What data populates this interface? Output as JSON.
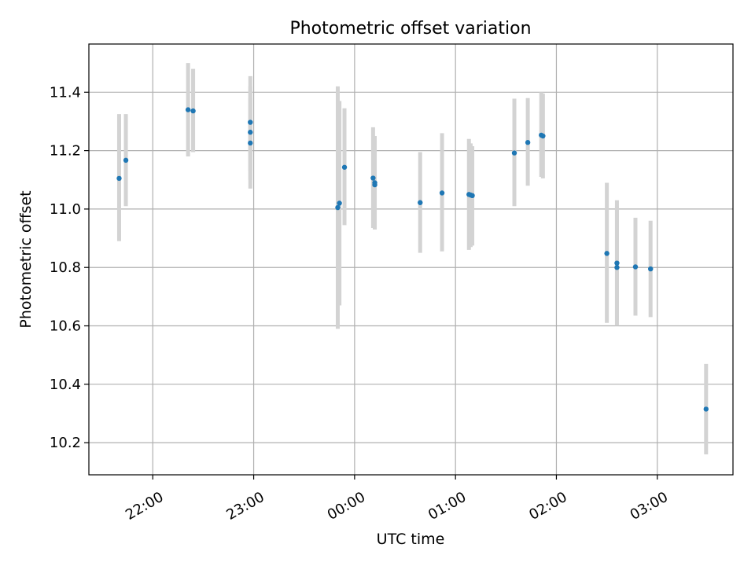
{
  "chart_data": {
    "type": "scatter",
    "title": "Photometric offset variation",
    "xlabel": "UTC time",
    "ylabel": "Photometric offset",
    "x_tick_labels": [
      "22:00",
      "23:00",
      "00:00",
      "01:00",
      "02:00",
      "03:00"
    ],
    "y_tick_labels": [
      "10.2",
      "10.4",
      "10.6",
      "10.8",
      "11.0",
      "11.2",
      "11.4"
    ],
    "y_ticks": [
      10.2,
      10.4,
      10.6,
      10.8,
      11.0,
      11.2,
      11.4
    ],
    "x_ticks": [
      "22:00",
      "23:00",
      "00:00",
      "01:00",
      "02:00",
      "03:00"
    ],
    "xlim": [
      "21:22",
      "03:45"
    ],
    "ylim": [
      10.09,
      11.565
    ],
    "grid": true,
    "colors": {
      "point": "#1f77b4",
      "errorbar": "#d3d3d3",
      "grid": "#b0b0b0"
    },
    "points": [
      {
        "x": "21:40",
        "y": 11.105,
        "low": 10.89,
        "high": 11.325
      },
      {
        "x": "21:44",
        "y": 11.167,
        "low": 11.01,
        "high": 11.325
      },
      {
        "x": "22:21",
        "y": 11.34,
        "low": 11.18,
        "high": 11.5
      },
      {
        "x": "22:24",
        "y": 11.336,
        "low": 11.195,
        "high": 11.48
      },
      {
        "x": "22:58",
        "y": 11.297,
        "low": 11.13,
        "high": 11.455
      },
      {
        "x": "22:58",
        "y": 11.263,
        "low": 11.1,
        "high": 11.42
      },
      {
        "x": "22:58",
        "y": 11.226,
        "low": 11.07,
        "high": 11.38
      },
      {
        "x": "23:50",
        "y": 11.005,
        "low": 10.59,
        "high": 11.42
      },
      {
        "x": "23:51",
        "y": 11.02,
        "low": 10.67,
        "high": 11.37
      },
      {
        "x": "23:54",
        "y": 11.143,
        "low": 10.945,
        "high": 11.345
      },
      {
        "x": "00:11",
        "y": 11.106,
        "low": 10.935,
        "high": 11.28
      },
      {
        "x": "00:12",
        "y": 11.09,
        "low": 10.93,
        "high": 11.25
      },
      {
        "x": "00:12",
        "y": 11.083,
        "low": 10.93,
        "high": 11.235
      },
      {
        "x": "00:39",
        "y": 11.022,
        "low": 10.85,
        "high": 11.195
      },
      {
        "x": "00:52",
        "y": 11.055,
        "low": 10.855,
        "high": 11.26
      },
      {
        "x": "01:08",
        "y": 11.05,
        "low": 10.86,
        "high": 11.24
      },
      {
        "x": "01:09",
        "y": 11.048,
        "low": 10.87,
        "high": 11.225
      },
      {
        "x": "01:10",
        "y": 11.046,
        "low": 10.875,
        "high": 11.215
      },
      {
        "x": "01:35",
        "y": 11.192,
        "low": 11.01,
        "high": 11.378
      },
      {
        "x": "01:43",
        "y": 11.228,
        "low": 11.08,
        "high": 11.38
      },
      {
        "x": "01:51",
        "y": 11.253,
        "low": 11.11,
        "high": 11.4
      },
      {
        "x": "01:52",
        "y": 11.25,
        "low": 11.105,
        "high": 11.395
      },
      {
        "x": "02:30",
        "y": 10.848,
        "low": 10.61,
        "high": 11.09
      },
      {
        "x": "02:36",
        "y": 10.8,
        "low": 10.6,
        "high": 11.03
      },
      {
        "x": "02:36",
        "y": 10.815,
        "low": 10.62,
        "high": 11.01
      },
      {
        "x": "02:47",
        "y": 10.802,
        "low": 10.635,
        "high": 10.97
      },
      {
        "x": "02:56",
        "y": 10.795,
        "low": 10.63,
        "high": 10.96
      },
      {
        "x": "03:29",
        "y": 10.315,
        "low": 10.16,
        "high": 10.47
      }
    ]
  }
}
